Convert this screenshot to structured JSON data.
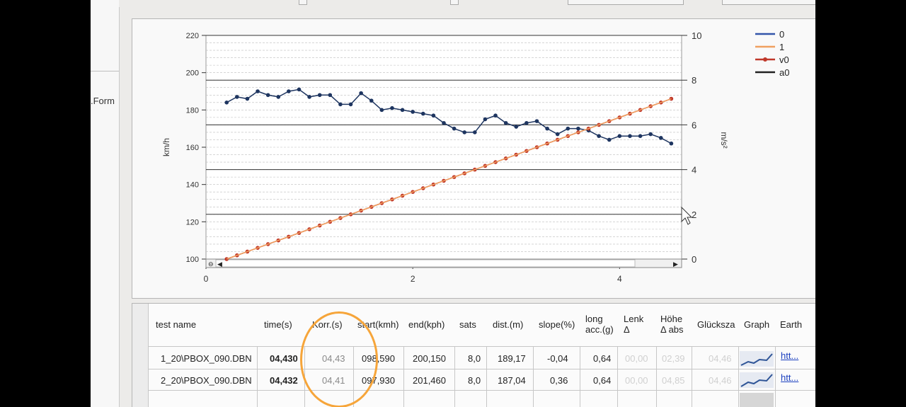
{
  "left_panel": {
    "form_label": ".Form"
  },
  "chart_data": {
    "type": "line",
    "x_ticks": [
      "0",
      "2",
      "4"
    ],
    "xlim": [
      0,
      4.6
    ],
    "y_left": {
      "label": "km/h",
      "ticks": [
        "100",
        "120",
        "140",
        "160",
        "180",
        "200",
        "220"
      ],
      "ylim": [
        100,
        220
      ]
    },
    "y_right": {
      "label": "m/s²",
      "ticks": [
        "0",
        "2",
        "4",
        "6",
        "8",
        "10"
      ],
      "ylim": [
        0,
        10
      ]
    },
    "grid": true,
    "legend_position": "top-right",
    "legend": [
      {
        "name": "0",
        "color": "#3355aa"
      },
      {
        "name": "1",
        "color": "#f0a060"
      },
      {
        "name": "v0",
        "color": "#c0392b"
      },
      {
        "name": "a0",
        "color": "#222222"
      }
    ],
    "series": [
      {
        "name": "0",
        "axis": "left",
        "color": "#1e3560",
        "x": [
          0.2,
          0.3,
          0.4,
          0.5,
          0.6,
          0.7,
          0.8,
          0.9,
          1.0,
          1.1,
          1.2,
          1.3,
          1.4,
          1.5,
          1.6,
          1.7,
          1.8,
          1.9,
          2.0,
          2.1,
          2.2,
          2.3,
          2.4,
          2.5,
          2.6,
          2.7,
          2.8,
          2.9,
          3.0,
          3.1,
          3.2,
          3.3,
          3.4,
          3.5,
          3.6,
          3.7,
          3.8,
          3.9,
          4.0,
          4.1,
          4.2,
          4.3,
          4.4,
          4.5
        ],
        "y": [
          184,
          187,
          186,
          190,
          188,
          187,
          190,
          191,
          187,
          188,
          188,
          183,
          183,
          189,
          185,
          180,
          181,
          180,
          179,
          178,
          177,
          173,
          170,
          168,
          168,
          175,
          177,
          173,
          171,
          173,
          174,
          170,
          167,
          170,
          170,
          169,
          166,
          164,
          166,
          166,
          166,
          167,
          165,
          162
        ]
      },
      {
        "name": "v0",
        "axis": "left",
        "color": "#c0392b",
        "x": [
          0.2,
          0.3,
          0.4,
          0.5,
          0.6,
          0.7,
          0.8,
          0.9,
          1.0,
          1.1,
          1.2,
          1.3,
          1.4,
          1.5,
          1.6,
          1.7,
          1.8,
          1.9,
          2.0,
          2.1,
          2.2,
          2.3,
          2.4,
          2.5,
          2.6,
          2.7,
          2.8,
          2.9,
          3.0,
          3.1,
          3.2,
          3.3,
          3.4,
          3.5,
          3.6,
          3.7,
          3.8,
          3.9,
          4.0,
          4.1,
          4.2,
          4.3,
          4.4,
          4.5
        ],
        "y": [
          100,
          102,
          104,
          106,
          108,
          110,
          112,
          114,
          116,
          118,
          120,
          122,
          124,
          126,
          128,
          130,
          132,
          134,
          136,
          138,
          140,
          142,
          144,
          146,
          148,
          150,
          152,
          154,
          156,
          158,
          160,
          162,
          164,
          166,
          168,
          170,
          172,
          174,
          176,
          178,
          180,
          182,
          184,
          186
        ]
      },
      {
        "name": "1",
        "axis": "left",
        "color": "#f0a060",
        "x": [
          0.2,
          4.5
        ],
        "y": [
          100,
          186
        ]
      }
    ]
  },
  "results_table": {
    "columns": [
      "test name",
      "time(s)",
      "Korr.(s)",
      "start(kmh)",
      "end(kph)",
      "sats",
      "dist.(m)",
      "slope(%)",
      "long acc.(g)",
      "Lenk Δ",
      "Höhe Δ abs",
      "Glücksza",
      "Graph",
      "Earth"
    ],
    "rows": [
      {
        "test_name": "1_20\\PBOX_090.DBN",
        "time": "04,430",
        "korr": "04,43",
        "start": "098,590",
        "end": "200,150",
        "sats": "8,0",
        "dist": "189,17",
        "slope": "-0,04",
        "long_acc": "0,64",
        "lenk": "00,00",
        "hoehe": "02,39",
        "glueck": "04,46",
        "earth": "htt..."
      },
      {
        "test_name": "2_20\\PBOX_090.DBN",
        "time": "04,432",
        "korr": "04,41",
        "start": "097,930",
        "end": "201,460",
        "sats": "8,0",
        "dist": "187,04",
        "slope": "0,36",
        "long_acc": "0,64",
        "lenk": "00,00",
        "hoehe": "04,85",
        "glueck": "04,46",
        "earth": "htt..."
      }
    ]
  }
}
